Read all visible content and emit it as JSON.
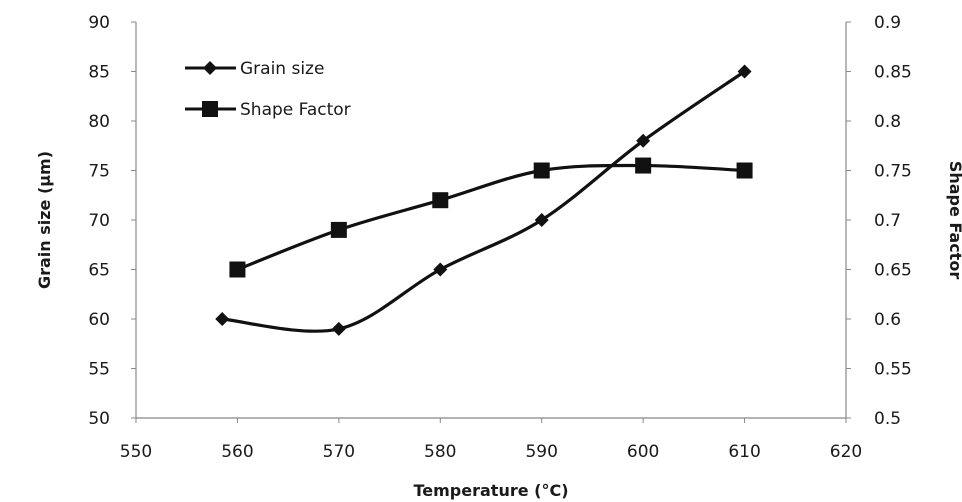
{
  "chart_data": {
    "type": "line",
    "xlabel": "Temperature (°C)",
    "ylabel": "Grain size  (µm)",
    "y2label": "Shape Factor",
    "xlim": [
      550,
      620
    ],
    "ylim": [
      50,
      90
    ],
    "y2lim": [
      0.5,
      0.9
    ],
    "x_ticks": [
      "550",
      "560",
      "570",
      "580",
      "590",
      "600",
      "610",
      "620"
    ],
    "y_ticks": [
      "50",
      "55",
      "60",
      "65",
      "70",
      "75",
      "80",
      "85",
      "90"
    ],
    "y2_ticks": [
      "0.5",
      "0.55",
      "0.6",
      "0.65",
      "0.7",
      "0.75",
      "0.8",
      "0.85",
      "0.9"
    ],
    "grid": false,
    "legend_position": "top-left",
    "series": [
      {
        "name": "Grain size",
        "axis": "left",
        "marker": "diamond",
        "x": [
          558.5,
          570,
          580,
          590,
          600,
          610
        ],
        "y": [
          60,
          59,
          65,
          70,
          78,
          85
        ]
      },
      {
        "name": "Shape Factor",
        "axis": "right",
        "marker": "square",
        "x": [
          560,
          570,
          580,
          590,
          600,
          610
        ],
        "y": [
          0.65,
          0.69,
          0.72,
          0.75,
          0.755,
          0.75
        ]
      }
    ],
    "colors": {
      "line": "#111111",
      "axis": "#888888"
    }
  }
}
